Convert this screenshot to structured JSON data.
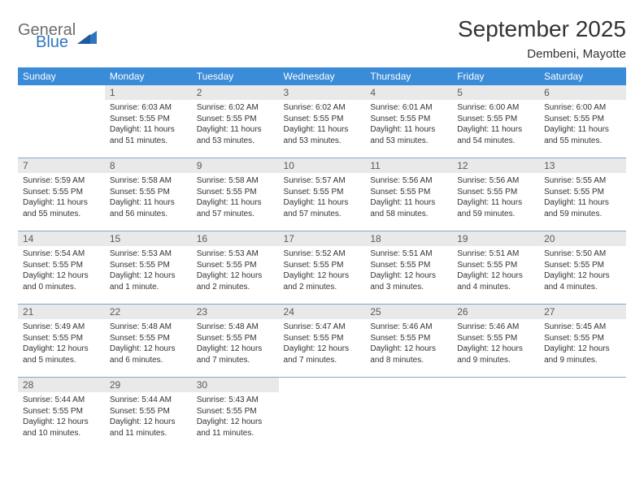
{
  "brand": {
    "word1": "General",
    "word2": "Blue",
    "accent_color": "#2f75c0",
    "text_color": "#6d6d6d"
  },
  "title": "September 2025",
  "location": "Dembeni, Mayotte",
  "header_bg": "#3a8bd8",
  "header_fg": "#ffffff",
  "daynum_bg": "#e9e9e9",
  "separator_color": "#7da9cf",
  "weekdays": [
    "Sunday",
    "Monday",
    "Tuesday",
    "Wednesday",
    "Thursday",
    "Friday",
    "Saturday"
  ],
  "weeks": [
    [
      null,
      {
        "n": "1",
        "sr": "Sunrise: 6:03 AM",
        "ss": "Sunset: 5:55 PM",
        "dl": "Daylight: 11 hours and 51 minutes."
      },
      {
        "n": "2",
        "sr": "Sunrise: 6:02 AM",
        "ss": "Sunset: 5:55 PM",
        "dl": "Daylight: 11 hours and 53 minutes."
      },
      {
        "n": "3",
        "sr": "Sunrise: 6:02 AM",
        "ss": "Sunset: 5:55 PM",
        "dl": "Daylight: 11 hours and 53 minutes."
      },
      {
        "n": "4",
        "sr": "Sunrise: 6:01 AM",
        "ss": "Sunset: 5:55 PM",
        "dl": "Daylight: 11 hours and 53 minutes."
      },
      {
        "n": "5",
        "sr": "Sunrise: 6:00 AM",
        "ss": "Sunset: 5:55 PM",
        "dl": "Daylight: 11 hours and 54 minutes."
      },
      {
        "n": "6",
        "sr": "Sunrise: 6:00 AM",
        "ss": "Sunset: 5:55 PM",
        "dl": "Daylight: 11 hours and 55 minutes."
      }
    ],
    [
      {
        "n": "7",
        "sr": "Sunrise: 5:59 AM",
        "ss": "Sunset: 5:55 PM",
        "dl": "Daylight: 11 hours and 55 minutes."
      },
      {
        "n": "8",
        "sr": "Sunrise: 5:58 AM",
        "ss": "Sunset: 5:55 PM",
        "dl": "Daylight: 11 hours and 56 minutes."
      },
      {
        "n": "9",
        "sr": "Sunrise: 5:58 AM",
        "ss": "Sunset: 5:55 PM",
        "dl": "Daylight: 11 hours and 57 minutes."
      },
      {
        "n": "10",
        "sr": "Sunrise: 5:57 AM",
        "ss": "Sunset: 5:55 PM",
        "dl": "Daylight: 11 hours and 57 minutes."
      },
      {
        "n": "11",
        "sr": "Sunrise: 5:56 AM",
        "ss": "Sunset: 5:55 PM",
        "dl": "Daylight: 11 hours and 58 minutes."
      },
      {
        "n": "12",
        "sr": "Sunrise: 5:56 AM",
        "ss": "Sunset: 5:55 PM",
        "dl": "Daylight: 11 hours and 59 minutes."
      },
      {
        "n": "13",
        "sr": "Sunrise: 5:55 AM",
        "ss": "Sunset: 5:55 PM",
        "dl": "Daylight: 11 hours and 59 minutes."
      }
    ],
    [
      {
        "n": "14",
        "sr": "Sunrise: 5:54 AM",
        "ss": "Sunset: 5:55 PM",
        "dl": "Daylight: 12 hours and 0 minutes."
      },
      {
        "n": "15",
        "sr": "Sunrise: 5:53 AM",
        "ss": "Sunset: 5:55 PM",
        "dl": "Daylight: 12 hours and 1 minute."
      },
      {
        "n": "16",
        "sr": "Sunrise: 5:53 AM",
        "ss": "Sunset: 5:55 PM",
        "dl": "Daylight: 12 hours and 2 minutes."
      },
      {
        "n": "17",
        "sr": "Sunrise: 5:52 AM",
        "ss": "Sunset: 5:55 PM",
        "dl": "Daylight: 12 hours and 2 minutes."
      },
      {
        "n": "18",
        "sr": "Sunrise: 5:51 AM",
        "ss": "Sunset: 5:55 PM",
        "dl": "Daylight: 12 hours and 3 minutes."
      },
      {
        "n": "19",
        "sr": "Sunrise: 5:51 AM",
        "ss": "Sunset: 5:55 PM",
        "dl": "Daylight: 12 hours and 4 minutes."
      },
      {
        "n": "20",
        "sr": "Sunrise: 5:50 AM",
        "ss": "Sunset: 5:55 PM",
        "dl": "Daylight: 12 hours and 4 minutes."
      }
    ],
    [
      {
        "n": "21",
        "sr": "Sunrise: 5:49 AM",
        "ss": "Sunset: 5:55 PM",
        "dl": "Daylight: 12 hours and 5 minutes."
      },
      {
        "n": "22",
        "sr": "Sunrise: 5:48 AM",
        "ss": "Sunset: 5:55 PM",
        "dl": "Daylight: 12 hours and 6 minutes."
      },
      {
        "n": "23",
        "sr": "Sunrise: 5:48 AM",
        "ss": "Sunset: 5:55 PM",
        "dl": "Daylight: 12 hours and 7 minutes."
      },
      {
        "n": "24",
        "sr": "Sunrise: 5:47 AM",
        "ss": "Sunset: 5:55 PM",
        "dl": "Daylight: 12 hours and 7 minutes."
      },
      {
        "n": "25",
        "sr": "Sunrise: 5:46 AM",
        "ss": "Sunset: 5:55 PM",
        "dl": "Daylight: 12 hours and 8 minutes."
      },
      {
        "n": "26",
        "sr": "Sunrise: 5:46 AM",
        "ss": "Sunset: 5:55 PM",
        "dl": "Daylight: 12 hours and 9 minutes."
      },
      {
        "n": "27",
        "sr": "Sunrise: 5:45 AM",
        "ss": "Sunset: 5:55 PM",
        "dl": "Daylight: 12 hours and 9 minutes."
      }
    ],
    [
      {
        "n": "28",
        "sr": "Sunrise: 5:44 AM",
        "ss": "Sunset: 5:55 PM",
        "dl": "Daylight: 12 hours and 10 minutes."
      },
      {
        "n": "29",
        "sr": "Sunrise: 5:44 AM",
        "ss": "Sunset: 5:55 PM",
        "dl": "Daylight: 12 hours and 11 minutes."
      },
      {
        "n": "30",
        "sr": "Sunrise: 5:43 AM",
        "ss": "Sunset: 5:55 PM",
        "dl": "Daylight: 12 hours and 11 minutes."
      },
      null,
      null,
      null,
      null
    ]
  ]
}
